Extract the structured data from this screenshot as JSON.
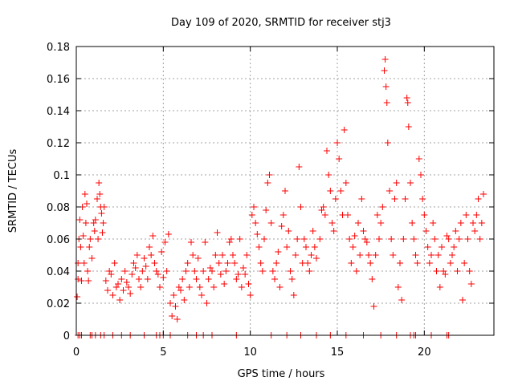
{
  "chart_data": {
    "type": "scatter",
    "title": "Day 109 of 2020, SRMTID for receiver stj3",
    "xlabel": "GPS time / hours",
    "ylabel": "SRMTID / TECUs",
    "xlim": [
      0,
      24
    ],
    "ylim": [
      0,
      0.18
    ],
    "xticks": [
      0,
      5,
      10,
      15,
      20
    ],
    "yticks": [
      0,
      0.02,
      0.04,
      0.06,
      0.08,
      0.1,
      0.12,
      0.14,
      0.16,
      0.18
    ],
    "ytick_labels": [
      "0",
      "0.02",
      "0.04",
      "0.06",
      "0.08",
      "0.1",
      "0.12",
      "0.14",
      "0.16",
      "0.18"
    ],
    "grid": true,
    "marker": "+",
    "color": "#ff0000",
    "series": [
      {
        "name": "SRMTID",
        "points": [
          [
            0.05,
            0.024
          ],
          [
            0.1,
            0.035
          ],
          [
            0.1,
            0.045
          ],
          [
            0.15,
            0.06
          ],
          [
            0.2,
            0.072
          ],
          [
            0.25,
            0.055
          ],
          [
            0.3,
            0.034
          ],
          [
            0.35,
            0.08
          ],
          [
            0.4,
            0.062
          ],
          [
            0.45,
            0.045
          ],
          [
            0.5,
            0.088
          ],
          [
            0.55,
            0.07
          ],
          [
            0.6,
            0.082
          ],
          [
            0.65,
            0.04
          ],
          [
            0.7,
            0.034
          ],
          [
            0.75,
            0.055
          ],
          [
            0.8,
            0.06
          ],
          [
            0.9,
            0.048
          ],
          [
            1.0,
            0.07
          ],
          [
            1.05,
            0.065
          ],
          [
            1.1,
            0.072
          ],
          [
            1.2,
            0.085
          ],
          [
            1.25,
            0.06
          ],
          [
            1.3,
            0.095
          ],
          [
            1.35,
            0.088
          ],
          [
            1.4,
            0.08
          ],
          [
            1.45,
            0.076
          ],
          [
            1.5,
            0.064
          ],
          [
            1.55,
            0.07
          ],
          [
            1.6,
            0.08
          ],
          [
            1.7,
            0.034
          ],
          [
            1.8,
            0.028
          ],
          [
            1.9,
            0.04
          ],
          [
            2.0,
            0.038
          ],
          [
            2.1,
            0.025
          ],
          [
            2.2,
            0.045
          ],
          [
            2.3,
            0.03
          ],
          [
            2.4,
            0.032
          ],
          [
            2.5,
            0.022
          ],
          [
            2.6,
            0.035
          ],
          [
            2.7,
            0.028
          ],
          [
            2.8,
            0.04
          ],
          [
            2.9,
            0.033
          ],
          [
            3.0,
            0.03
          ],
          [
            3.1,
            0.026
          ],
          [
            3.2,
            0.038
          ],
          [
            3.3,
            0.045
          ],
          [
            3.4,
            0.042
          ],
          [
            3.5,
            0.05
          ],
          [
            3.6,
            0.035
          ],
          [
            3.7,
            0.03
          ],
          [
            3.8,
            0.04
          ],
          [
            3.9,
            0.048
          ],
          [
            4.0,
            0.043
          ],
          [
            4.1,
            0.035
          ],
          [
            4.2,
            0.055
          ],
          [
            4.3,
            0.05
          ],
          [
            4.4,
            0.062
          ],
          [
            4.5,
            0.045
          ],
          [
            4.6,
            0.04
          ],
          [
            4.7,
            0.038
          ],
          [
            4.8,
            0.03
          ],
          [
            4.9,
            0.052
          ],
          [
            5.0,
            0.036
          ],
          [
            5.1,
            0.058
          ],
          [
            5.2,
            0.04
          ],
          [
            5.3,
            0.063
          ],
          [
            5.4,
            0.02
          ],
          [
            5.5,
            0.012
          ],
          [
            5.6,
            0.025
          ],
          [
            5.7,
            0.018
          ],
          [
            5.8,
            0.01
          ],
          [
            5.9,
            0.03
          ],
          [
            6.0,
            0.028
          ],
          [
            6.1,
            0.035
          ],
          [
            6.2,
            0.022
          ],
          [
            6.3,
            0.04
          ],
          [
            6.4,
            0.045
          ],
          [
            6.5,
            0.03
          ],
          [
            6.6,
            0.058
          ],
          [
            6.7,
            0.05
          ],
          [
            6.8,
            0.04
          ],
          [
            6.9,
            0.035
          ],
          [
            7.0,
            0.048
          ],
          [
            7.1,
            0.03
          ],
          [
            7.2,
            0.025
          ],
          [
            7.3,
            0.04
          ],
          [
            7.4,
            0.058
          ],
          [
            7.5,
            0.02
          ],
          [
            7.6,
            0.035
          ],
          [
            7.7,
            0.042
          ],
          [
            7.8,
            0.04
          ],
          [
            7.9,
            0.03
          ],
          [
            8.0,
            0.05
          ],
          [
            8.1,
            0.064
          ],
          [
            8.2,
            0.045
          ],
          [
            8.3,
            0.038
          ],
          [
            8.4,
            0.05
          ],
          [
            8.5,
            0.032
          ],
          [
            8.6,
            0.04
          ],
          [
            8.7,
            0.045
          ],
          [
            8.8,
            0.058
          ],
          [
            8.9,
            0.06
          ],
          [
            9.0,
            0.05
          ],
          [
            9.1,
            0.045
          ],
          [
            9.2,
            0.035
          ],
          [
            9.3,
            0.038
          ],
          [
            9.4,
            0.06
          ],
          [
            9.5,
            0.03
          ],
          [
            9.6,
            0.042
          ],
          [
            9.7,
            0.038
          ],
          [
            9.8,
            0.05
          ],
          [
            9.9,
            0.032
          ],
          [
            10.0,
            0.025
          ],
          [
            10.1,
            0.075
          ],
          [
            10.2,
            0.08
          ],
          [
            10.3,
            0.07
          ],
          [
            10.4,
            0.063
          ],
          [
            10.5,
            0.055
          ],
          [
            10.6,
            0.045
          ],
          [
            10.7,
            0.04
          ],
          [
            10.8,
            0.06
          ],
          [
            10.9,
            0.078
          ],
          [
            11.0,
            0.095
          ],
          [
            11.1,
            0.1
          ],
          [
            11.2,
            0.07
          ],
          [
            11.3,
            0.04
          ],
          [
            11.4,
            0.035
          ],
          [
            11.5,
            0.045
          ],
          [
            11.6,
            0.052
          ],
          [
            11.7,
            0.03
          ],
          [
            11.8,
            0.068
          ],
          [
            11.9,
            0.075
          ],
          [
            12.0,
            0.09
          ],
          [
            12.1,
            0.055
          ],
          [
            12.2,
            0.065
          ],
          [
            12.3,
            0.04
          ],
          [
            12.4,
            0.035
          ],
          [
            12.5,
            0.025
          ],
          [
            12.6,
            0.05
          ],
          [
            12.7,
            0.06
          ],
          [
            12.8,
            0.105
          ],
          [
            12.9,
            0.08
          ],
          [
            13.0,
            0.045
          ],
          [
            13.1,
            0.06
          ],
          [
            13.2,
            0.055
          ],
          [
            13.3,
            0.045
          ],
          [
            13.4,
            0.04
          ],
          [
            13.5,
            0.05
          ],
          [
            13.6,
            0.065
          ],
          [
            13.7,
            0.055
          ],
          [
            13.8,
            0.048
          ],
          [
            14.0,
            0.06
          ],
          [
            14.1,
            0.078
          ],
          [
            14.2,
            0.08
          ],
          [
            14.3,
            0.075
          ],
          [
            14.4,
            0.115
          ],
          [
            14.5,
            0.1
          ],
          [
            14.6,
            0.09
          ],
          [
            14.7,
            0.07
          ],
          [
            14.8,
            0.065
          ],
          [
            14.9,
            0.085
          ],
          [
            15.0,
            0.12
          ],
          [
            15.1,
            0.11
          ],
          [
            15.2,
            0.09
          ],
          [
            15.3,
            0.075
          ],
          [
            15.4,
            0.128
          ],
          [
            15.5,
            0.095
          ],
          [
            15.6,
            0.075
          ],
          [
            15.7,
            0.06
          ],
          [
            15.8,
            0.045
          ],
          [
            15.9,
            0.055
          ],
          [
            16.0,
            0.062
          ],
          [
            16.1,
            0.04
          ],
          [
            16.2,
            0.07
          ],
          [
            16.3,
            0.05
          ],
          [
            16.4,
            0.085
          ],
          [
            16.5,
            0.065
          ],
          [
            16.6,
            0.06
          ],
          [
            16.7,
            0.058
          ],
          [
            16.8,
            0.05
          ],
          [
            16.9,
            0.045
          ],
          [
            17.0,
            0.035
          ],
          [
            17.1,
            0.018
          ],
          [
            17.2,
            0.05
          ],
          [
            17.3,
            0.075
          ],
          [
            17.4,
            0.06
          ],
          [
            17.5,
            0.07
          ],
          [
            17.6,
            0.08
          ],
          [
            17.7,
            0.165
          ],
          [
            17.75,
            0.172
          ],
          [
            17.8,
            0.155
          ],
          [
            17.85,
            0.145
          ],
          [
            17.9,
            0.12
          ],
          [
            18.0,
            0.09
          ],
          [
            18.1,
            0.06
          ],
          [
            18.2,
            0.05
          ],
          [
            18.3,
            0.085
          ],
          [
            18.4,
            0.095
          ],
          [
            18.5,
            0.03
          ],
          [
            18.6,
            0.045
          ],
          [
            18.7,
            0.022
          ],
          [
            18.8,
            0.06
          ],
          [
            18.9,
            0.085
          ],
          [
            19.0,
            0.148
          ],
          [
            19.05,
            0.145
          ],
          [
            19.1,
            0.13
          ],
          [
            19.2,
            0.095
          ],
          [
            19.3,
            0.07
          ],
          [
            19.4,
            0.06
          ],
          [
            19.5,
            0.05
          ],
          [
            19.6,
            0.045
          ],
          [
            19.7,
            0.11
          ],
          [
            19.8,
            0.1
          ],
          [
            19.9,
            0.085
          ],
          [
            20.0,
            0.075
          ],
          [
            20.1,
            0.065
          ],
          [
            20.2,
            0.055
          ],
          [
            20.3,
            0.045
          ],
          [
            20.4,
            0.05
          ],
          [
            20.5,
            0.07
          ],
          [
            20.6,
            0.06
          ],
          [
            20.7,
            0.04
          ],
          [
            20.8,
            0.05
          ],
          [
            20.9,
            0.03
          ],
          [
            21.0,
            0.055
          ],
          [
            21.1,
            0.04
          ],
          [
            21.2,
            0.038
          ],
          [
            21.3,
            0.062
          ],
          [
            21.4,
            0.06
          ],
          [
            21.5,
            0.045
          ],
          [
            21.6,
            0.05
          ],
          [
            21.7,
            0.055
          ],
          [
            21.8,
            0.065
          ],
          [
            21.9,
            0.04
          ],
          [
            22.0,
            0.06
          ],
          [
            22.1,
            0.07
          ],
          [
            22.2,
            0.022
          ],
          [
            22.3,
            0.045
          ],
          [
            22.4,
            0.075
          ],
          [
            22.5,
            0.06
          ],
          [
            22.6,
            0.04
          ],
          [
            22.7,
            0.032
          ],
          [
            22.8,
            0.07
          ],
          [
            22.9,
            0.065
          ],
          [
            23.0,
            0.075
          ],
          [
            23.1,
            0.085
          ],
          [
            23.2,
            0.06
          ],
          [
            23.3,
            0.07
          ],
          [
            23.4,
            0.088
          ]
        ]
      }
    ],
    "zero_points_x": [
      0.1,
      0.2,
      0.3,
      0.8,
      0.9,
      1.1,
      1.4,
      1.6,
      2.1,
      2.6,
      3.1,
      3.9,
      4.6,
      4.8,
      5.0,
      5.4,
      6.4,
      6.9,
      7.3,
      7.8,
      9.2,
      11.2,
      12.1,
      12.9,
      13.8,
      14.6,
      15.5,
      16.5,
      17.5,
      18.4,
      19.2,
      19.4,
      19.5,
      20.4,
      21.3,
      21.4
    ]
  }
}
